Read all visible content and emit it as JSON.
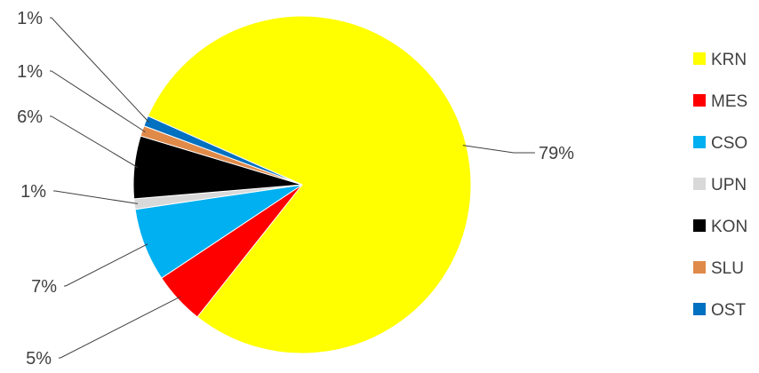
{
  "chart_data": {
    "type": "pie",
    "categories": [
      "KRN",
      "MES",
      "CSO",
      "UPN",
      "KON",
      "SLU",
      "OST"
    ],
    "values": [
      79,
      5,
      7,
      1,
      6,
      1,
      1
    ],
    "data_labels": [
      "79%",
      "5%",
      "7%",
      "1%",
      "6%",
      "1%",
      "1%"
    ],
    "colors": [
      "#FFFF00",
      "#FF0000",
      "#00B0F0",
      "#D9D9D9",
      "#000000",
      "#E08A4A",
      "#0070C0"
    ],
    "legend_position": "right",
    "title": ""
  }
}
